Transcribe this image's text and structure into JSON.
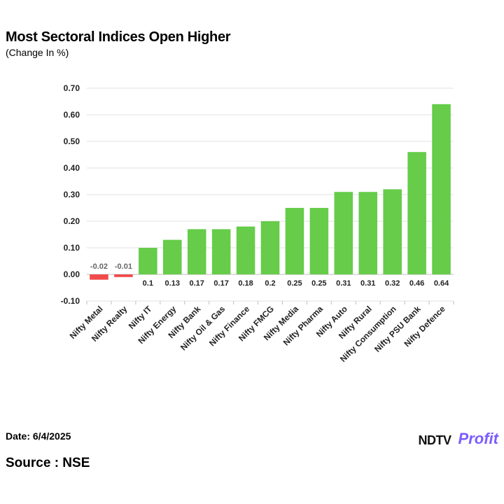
{
  "header": {
    "title": "Most Sectoral Indices Open Higher",
    "subtitle": "(Change In %)"
  },
  "chart_data": {
    "type": "bar",
    "title": "Most Sectoral Indices Open Higher",
    "ylabel": "Change In %",
    "xlabel": "",
    "ylim": [
      -0.1,
      0.7
    ],
    "yticks": [
      "0.70",
      "0.60",
      "0.50",
      "0.40",
      "0.30",
      "0.20",
      "0.10",
      "0.00",
      "-0.10"
    ],
    "ytick_values": [
      0.7,
      0.6,
      0.5,
      0.4,
      0.3,
      0.2,
      0.1,
      0.0,
      -0.1
    ],
    "grid": true,
    "categories": [
      "Nifty Metal",
      "Nifty Realty",
      "Nifty IT",
      "Nifty Energy",
      "Nifty Bank",
      "Nifty Oil & Gas",
      "Nifty Finance",
      "Nifty FMCG",
      "Nifty Media",
      "Nifty Pharma",
      "Nifty Auto",
      "Nifty Rural",
      "Nifty Consumption",
      "Nifty PSU Bank",
      "Nifty Defence"
    ],
    "values": [
      -0.02,
      -0.01,
      0.1,
      0.13,
      0.17,
      0.17,
      0.18,
      0.2,
      0.25,
      0.25,
      0.31,
      0.31,
      0.32,
      0.46,
      0.64
    ],
    "value_labels": [
      "-0.02",
      "-0.01",
      "0.1",
      "0.13",
      "0.17",
      "0.17",
      "0.18",
      "0.2",
      "0.25",
      "0.25",
      "0.31",
      "0.31",
      "0.32",
      "0.46",
      "0.64"
    ],
    "colors": {
      "positive": "#66cc4a",
      "negative": "#f04b4b",
      "grid": "#e2e2e2",
      "axis": "#bfbfbf"
    }
  },
  "footer": {
    "date": "Date: 6/4/2025",
    "source": "Source : NSE",
    "logo_ndtv": "NDTV",
    "logo_profit": "Profit"
  }
}
